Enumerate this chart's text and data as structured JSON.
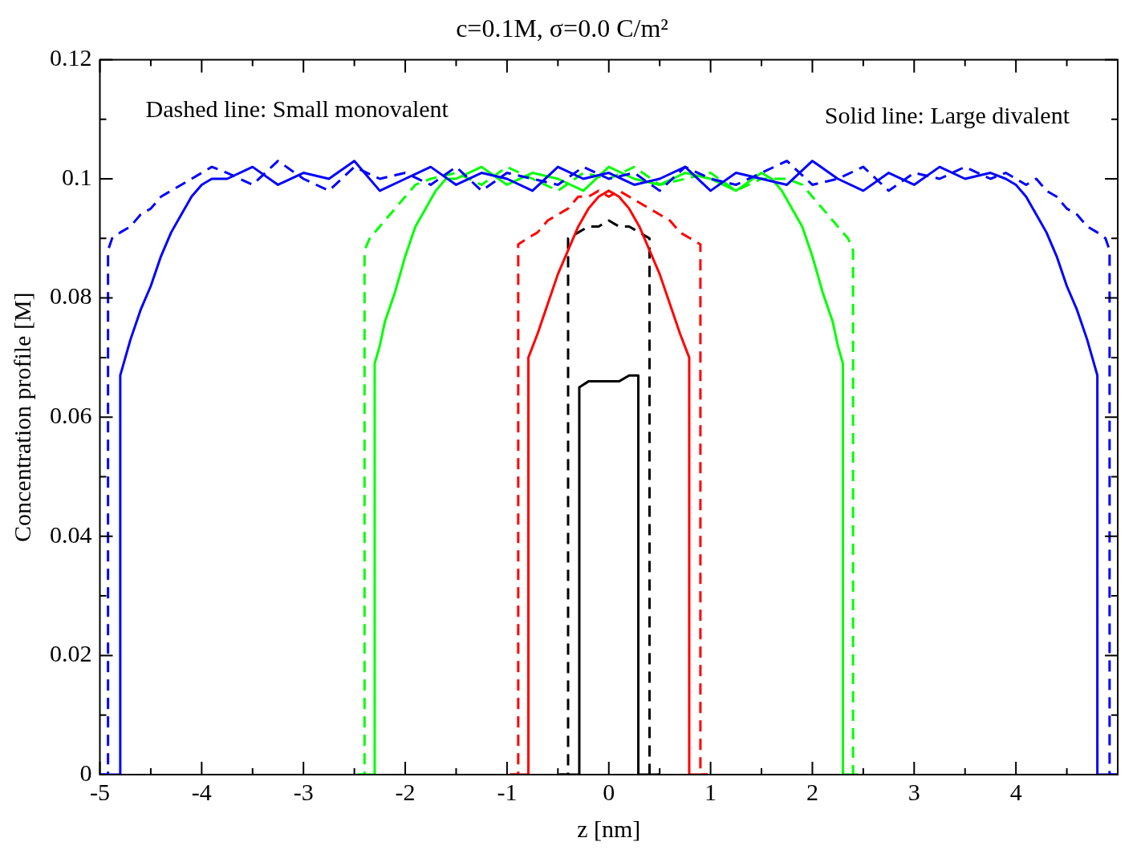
{
  "chart_data": {
    "type": "line",
    "title": "c=0.1M, σ=0.0 C/m²",
    "xlabel": "z [nm]",
    "ylabel": "Concentration profile [M]",
    "annotations": [
      "Dashed line: Small monovalent",
      "Solid line: Large divalent"
    ],
    "xlim": [
      -5,
      5
    ],
    "ylim": [
      0,
      0.12
    ],
    "xticks": [
      -5,
      {
        "value": -4.5,
        "label": null
      },
      -4,
      {
        "value": -3.5,
        "label": null
      },
      -3,
      {
        "value": -2.5,
        "label": null
      },
      -2,
      {
        "value": -1.5,
        "label": null
      },
      -1,
      {
        "value": -0.5,
        "label": null
      },
      0,
      {
        "value": 0.5,
        "label": null
      },
      1,
      {
        "value": 1.5,
        "label": null
      },
      2,
      {
        "value": 2.5,
        "label": null
      },
      3,
      {
        "value": 3.5,
        "label": null
      },
      4,
      {
        "value": 4.5,
        "label": null
      }
    ],
    "yticks": [
      0,
      {
        "value": 0.01,
        "label": null
      },
      0.02,
      {
        "value": 0.03,
        "label": null
      },
      0.04,
      {
        "value": 0.05,
        "label": null
      },
      0.06,
      {
        "value": 0.07,
        "label": null
      },
      0.08,
      {
        "value": 0.09,
        "label": null
      },
      0.1,
      {
        "value": 0.11,
        "label": null
      },
      0.12
    ],
    "grid": false,
    "legend": false,
    "marker": "none",
    "series": [
      {
        "color": "#0000ff",
        "line_style": "dashed",
        "x": [
          -5,
          -4.92,
          -4.92,
          -4.88,
          -4.8,
          -4.7,
          -4.6,
          -4.5,
          -4.4,
          -4.3,
          -4.2,
          -4.1,
          -4.0,
          -3.9,
          -3.75,
          -3.5,
          -3.25,
          -3.0,
          -2.75,
          -2.5,
          -2.25,
          -2.0,
          -1.75,
          -1.5,
          -1.25,
          -1.0,
          -0.75,
          -0.5,
          -0.25,
          0,
          0.25,
          0.5,
          0.75,
          1.0,
          1.25,
          1.5,
          1.75,
          2.0,
          2.25,
          2.5,
          2.75,
          3.0,
          3.25,
          3.5,
          3.75,
          3.9,
          4.0,
          4.1,
          4.2,
          4.3,
          4.4,
          4.5,
          4.6,
          4.7,
          4.8,
          4.88,
          4.92,
          4.92,
          5
        ],
        "values": [
          0,
          0,
          0.088,
          0.09,
          0.091,
          0.092,
          0.094,
          0.095,
          0.097,
          0.098,
          0.099,
          0.1,
          0.101,
          0.102,
          0.101,
          0.099,
          0.103,
          0.1,
          0.098,
          0.102,
          0.1,
          0.101,
          0.099,
          0.102,
          0.098,
          0.101,
          0.1,
          0.099,
          0.102,
          0.1,
          0.101,
          0.098,
          0.102,
          0.1,
          0.099,
          0.101,
          0.103,
          0.099,
          0.1,
          0.102,
          0.098,
          0.101,
          0.1,
          0.102,
          0.1,
          0.101,
          0.1,
          0.099,
          0.1,
          0.098,
          0.097,
          0.095,
          0.094,
          0.092,
          0.091,
          0.09,
          0.088,
          0,
          0
        ]
      },
      {
        "color": "#0000ff",
        "line_style": "solid",
        "x": [
          -5,
          -4.8,
          -4.8,
          -4.75,
          -4.7,
          -4.6,
          -4.5,
          -4.4,
          -4.3,
          -4.2,
          -4.1,
          -4.0,
          -3.9,
          -3.75,
          -3.5,
          -3.25,
          -3.0,
          -2.75,
          -2.5,
          -2.25,
          -2.0,
          -1.75,
          -1.5,
          -1.25,
          -1.0,
          -0.75,
          -0.5,
          -0.25,
          0,
          0.25,
          0.5,
          0.75,
          1.0,
          1.25,
          1.5,
          1.75,
          2.0,
          2.25,
          2.5,
          2.75,
          3.0,
          3.25,
          3.5,
          3.75,
          3.9,
          4.0,
          4.1,
          4.2,
          4.3,
          4.4,
          4.5,
          4.6,
          4.7,
          4.75,
          4.8,
          4.8,
          5
        ],
        "values": [
          0,
          0,
          0.067,
          0.07,
          0.073,
          0.078,
          0.082,
          0.087,
          0.091,
          0.094,
          0.097,
          0.099,
          0.1,
          0.1,
          0.102,
          0.099,
          0.101,
          0.1,
          0.103,
          0.098,
          0.1,
          0.102,
          0.099,
          0.101,
          0.1,
          0.098,
          0.102,
          0.1,
          0.101,
          0.099,
          0.1,
          0.102,
          0.098,
          0.101,
          0.1,
          0.099,
          0.103,
          0.1,
          0.098,
          0.101,
          0.099,
          0.102,
          0.1,
          0.101,
          0.1,
          0.099,
          0.097,
          0.094,
          0.091,
          0.087,
          0.082,
          0.078,
          0.073,
          0.07,
          0.067,
          0,
          0
        ]
      },
      {
        "color": "#00ff00",
        "line_style": "dashed",
        "x": [
          -2.48,
          -2.4,
          -2.4,
          -2.35,
          -2.3,
          -2.2,
          -2.1,
          -2.0,
          -1.9,
          -1.75,
          -1.5,
          -1.25,
          -1.0,
          -0.75,
          -0.5,
          -0.25,
          0,
          0.25,
          0.5,
          0.75,
          1.0,
          1.25,
          1.5,
          1.75,
          1.9,
          2.0,
          2.1,
          2.2,
          2.3,
          2.35,
          2.4,
          2.4,
          2.48
        ],
        "values": [
          0,
          0,
          0.088,
          0.09,
          0.091,
          0.093,
          0.095,
          0.097,
          0.099,
          0.1,
          0.101,
          0.099,
          0.102,
          0.1,
          0.098,
          0.101,
          0.1,
          0.102,
          0.099,
          0.1,
          0.101,
          0.098,
          0.1,
          0.1,
          0.099,
          0.097,
          0.095,
          0.093,
          0.091,
          0.09,
          0.088,
          0,
          0
        ]
      },
      {
        "color": "#00ff00",
        "line_style": "solid",
        "x": [
          -2.45,
          -2.3,
          -2.3,
          -2.25,
          -2.2,
          -2.1,
          -2.0,
          -1.9,
          -1.8,
          -1.7,
          -1.6,
          -1.5,
          -1.25,
          -1.0,
          -0.75,
          -0.5,
          -0.25,
          0,
          0.25,
          0.5,
          0.75,
          1.0,
          1.25,
          1.5,
          1.6,
          1.7,
          1.8,
          1.9,
          2.0,
          2.1,
          2.2,
          2.25,
          2.3,
          2.3,
          2.45
        ],
        "values": [
          0,
          0,
          0.069,
          0.072,
          0.076,
          0.081,
          0.087,
          0.092,
          0.095,
          0.098,
          0.1,
          0.1,
          0.102,
          0.099,
          0.101,
          0.1,
          0.098,
          0.102,
          0.1,
          0.099,
          0.101,
          0.1,
          0.098,
          0.101,
          0.1,
          0.098,
          0.095,
          0.092,
          0.087,
          0.081,
          0.076,
          0.072,
          0.069,
          0,
          0
        ]
      },
      {
        "color": "#ff0000",
        "line_style": "dashed",
        "x": [
          -0.97,
          -0.89,
          -0.89,
          -0.8,
          -0.7,
          -0.6,
          -0.5,
          -0.4,
          -0.3,
          -0.2,
          -0.1,
          0,
          0.1,
          0.2,
          0.3,
          0.4,
          0.5,
          0.6,
          0.7,
          0.8,
          0.9,
          0.9,
          0.97
        ],
        "values": [
          0,
          0,
          0.089,
          0.09,
          0.091,
          0.093,
          0.094,
          0.095,
          0.097,
          0.097,
          0.098,
          0.097,
          0.098,
          0.097,
          0.096,
          0.095,
          0.094,
          0.093,
          0.091,
          0.09,
          0.089,
          0,
          0
        ]
      },
      {
        "color": "#ff0000",
        "line_style": "solid",
        "x": [
          -0.97,
          -0.79,
          -0.79,
          -0.7,
          -0.6,
          -0.5,
          -0.4,
          -0.3,
          -0.2,
          -0.1,
          0,
          0.1,
          0.2,
          0.3,
          0.4,
          0.5,
          0.6,
          0.7,
          0.79,
          0.79,
          0.97
        ],
        "values": [
          0,
          0,
          0.07,
          0.074,
          0.079,
          0.084,
          0.088,
          0.092,
          0.095,
          0.097,
          0.098,
          0.097,
          0.095,
          0.092,
          0.088,
          0.084,
          0.079,
          0.074,
          0.07,
          0,
          0
        ]
      },
      {
        "color": "#000000",
        "line_style": "dashed",
        "x": [
          -0.49,
          -0.4,
          -0.4,
          -0.3,
          -0.2,
          -0.1,
          0,
          0.1,
          0.2,
          0.3,
          0.4,
          0.4,
          0.49
        ],
        "values": [
          0,
          0,
          0.09,
          0.091,
          0.092,
          0.092,
          0.093,
          0.092,
          0.092,
          0.091,
          0.09,
          0,
          0
        ]
      },
      {
        "color": "#000000",
        "line_style": "solid",
        "x": [
          -0.49,
          -0.29,
          -0.29,
          -0.2,
          -0.1,
          0,
          0.1,
          0.2,
          0.29,
          0.29,
          0.49
        ],
        "values": [
          0,
          0,
          0.065,
          0.066,
          0.066,
          0.066,
          0.066,
          0.067,
          0.067,
          0,
          0
        ]
      }
    ]
  }
}
